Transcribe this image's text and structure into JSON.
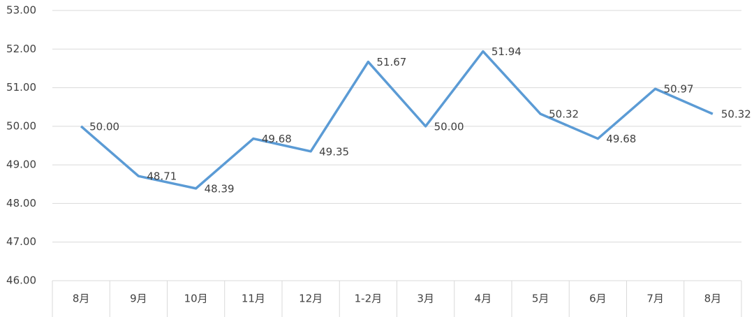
{
  "chart_data": {
    "type": "line",
    "categories": [
      "8月",
      "9月",
      "10月",
      "11月",
      "12月",
      "1-2月",
      "3月",
      "4月",
      "5月",
      "6月",
      "7月",
      "8月"
    ],
    "values": [
      50.0,
      48.71,
      48.39,
      49.68,
      49.35,
      51.67,
      50.0,
      51.94,
      50.32,
      49.68,
      50.97,
      50.32
    ],
    "value_labels": [
      "50.00",
      "48.71",
      "48.39",
      "49.68",
      "49.35",
      "51.67",
      "50.00",
      "51.94",
      "50.32",
      "49.68",
      "50.97",
      "50.32"
    ],
    "color": "#5b9bd5",
    "ylim": [
      46,
      53
    ],
    "yticks": [
      {
        "value": 46,
        "label": "46.00"
      },
      {
        "value": 47,
        "label": "47.00"
      },
      {
        "value": 48,
        "label": "48.00"
      },
      {
        "value": 49,
        "label": "49.00"
      },
      {
        "value": 50,
        "label": "50.00"
      },
      {
        "value": 51,
        "label": "51.00"
      },
      {
        "value": 52,
        "label": "52.00"
      },
      {
        "value": 53,
        "label": "53.00"
      }
    ],
    "grid": true
  }
}
